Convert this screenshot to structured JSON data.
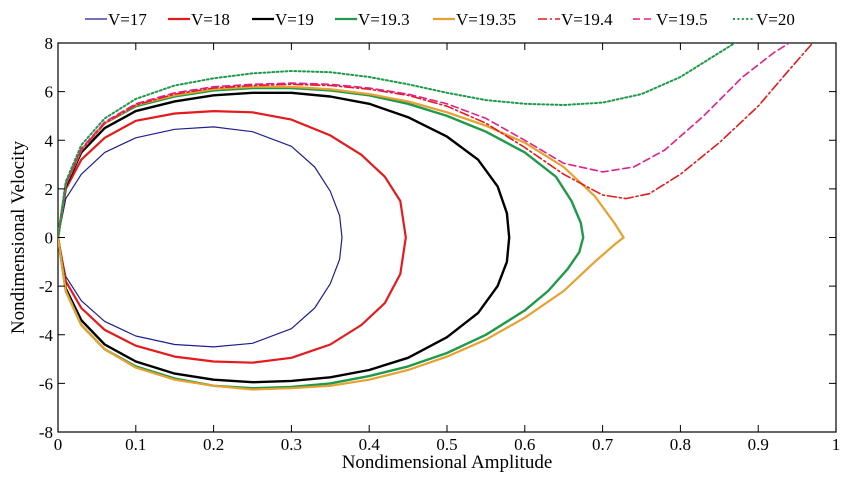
{
  "chart_data": {
    "type": "line",
    "title": "",
    "xlabel": "Nondimensional Amplitude",
    "ylabel": "Nondimensional Velocity",
    "xlim": [
      0,
      1
    ],
    "ylim": [
      -8,
      8
    ],
    "xticks": [
      0,
      0.1,
      0.2,
      0.3,
      0.4,
      0.5,
      0.6,
      0.7,
      0.8,
      0.9,
      1
    ],
    "xtick_labels": [
      "0",
      "0.1",
      "0.2",
      "0.3",
      "0.4",
      "0.5",
      "0.6",
      "0.7",
      "0.8",
      "0.9",
      "1"
    ],
    "yticks": [
      -8,
      -6,
      -4,
      -2,
      0,
      2,
      4,
      6,
      8
    ],
    "ytick_labels": [
      "-8",
      "-6",
      "-4",
      "-2",
      "0",
      "2",
      "4",
      "6",
      "8"
    ],
    "grid": false,
    "legend_position": "top",
    "series": [
      {
        "name": "V=17",
        "color": "#1f1f8f",
        "dash": "solid",
        "width": 1.2,
        "points": [
          [
            0,
            0
          ],
          [
            0.01,
            1.6
          ],
          [
            0.03,
            2.6
          ],
          [
            0.06,
            3.5
          ],
          [
            0.1,
            4.1
          ],
          [
            0.15,
            4.45
          ],
          [
            0.2,
            4.55
          ],
          [
            0.25,
            4.35
          ],
          [
            0.3,
            3.75
          ],
          [
            0.33,
            2.9
          ],
          [
            0.35,
            1.9
          ],
          [
            0.362,
            0.9
          ],
          [
            0.365,
            0
          ],
          [
            0.362,
            -0.9
          ],
          [
            0.35,
            -1.9
          ],
          [
            0.33,
            -2.9
          ],
          [
            0.3,
            -3.75
          ],
          [
            0.25,
            -4.35
          ],
          [
            0.2,
            -4.5
          ],
          [
            0.15,
            -4.4
          ],
          [
            0.1,
            -4.05
          ],
          [
            0.06,
            -3.45
          ],
          [
            0.03,
            -2.6
          ],
          [
            0.01,
            -1.6
          ],
          [
            0,
            0
          ]
        ]
      },
      {
        "name": "V=18",
        "color": "#e41a1c",
        "dash": "solid",
        "width": 2.2,
        "points": [
          [
            0,
            0
          ],
          [
            0.01,
            2.0
          ],
          [
            0.03,
            3.2
          ],
          [
            0.06,
            4.1
          ],
          [
            0.1,
            4.8
          ],
          [
            0.15,
            5.1
          ],
          [
            0.2,
            5.2
          ],
          [
            0.25,
            5.15
          ],
          [
            0.3,
            4.85
          ],
          [
            0.35,
            4.2
          ],
          [
            0.39,
            3.4
          ],
          [
            0.42,
            2.5
          ],
          [
            0.44,
            1.5
          ],
          [
            0.447,
            0
          ],
          [
            0.44,
            -1.5
          ],
          [
            0.42,
            -2.7
          ],
          [
            0.39,
            -3.6
          ],
          [
            0.35,
            -4.4
          ],
          [
            0.3,
            -4.95
          ],
          [
            0.25,
            -5.15
          ],
          [
            0.2,
            -5.1
          ],
          [
            0.15,
            -4.9
          ],
          [
            0.1,
            -4.45
          ],
          [
            0.06,
            -3.8
          ],
          [
            0.03,
            -2.9
          ],
          [
            0.01,
            -1.8
          ],
          [
            0,
            0
          ]
        ]
      },
      {
        "name": "V=19",
        "color": "#000000",
        "dash": "solid",
        "width": 2.4,
        "points": [
          [
            0,
            0
          ],
          [
            0.01,
            2.1
          ],
          [
            0.03,
            3.5
          ],
          [
            0.06,
            4.5
          ],
          [
            0.1,
            5.2
          ],
          [
            0.15,
            5.6
          ],
          [
            0.2,
            5.85
          ],
          [
            0.25,
            5.95
          ],
          [
            0.3,
            5.95
          ],
          [
            0.35,
            5.8
          ],
          [
            0.4,
            5.5
          ],
          [
            0.45,
            4.95
          ],
          [
            0.5,
            4.15
          ],
          [
            0.54,
            3.2
          ],
          [
            0.565,
            2.1
          ],
          [
            0.577,
            1.0
          ],
          [
            0.58,
            0
          ],
          [
            0.577,
            -1.0
          ],
          [
            0.565,
            -2.0
          ],
          [
            0.54,
            -3.1
          ],
          [
            0.5,
            -4.1
          ],
          [
            0.45,
            -4.95
          ],
          [
            0.4,
            -5.45
          ],
          [
            0.35,
            -5.75
          ],
          [
            0.3,
            -5.9
          ],
          [
            0.25,
            -5.95
          ],
          [
            0.2,
            -5.85
          ],
          [
            0.15,
            -5.6
          ],
          [
            0.1,
            -5.1
          ],
          [
            0.06,
            -4.4
          ],
          [
            0.03,
            -3.4
          ],
          [
            0.01,
            -2.1
          ],
          [
            0,
            0
          ]
        ]
      },
      {
        "name": "V=19.3",
        "color": "#1e9a4a",
        "dash": "solid",
        "width": 2.4,
        "points": [
          [
            0,
            0
          ],
          [
            0.01,
            2.2
          ],
          [
            0.03,
            3.6
          ],
          [
            0.06,
            4.7
          ],
          [
            0.1,
            5.4
          ],
          [
            0.15,
            5.8
          ],
          [
            0.2,
            6.05
          ],
          [
            0.25,
            6.15
          ],
          [
            0.3,
            6.15
          ],
          [
            0.35,
            6.05
          ],
          [
            0.4,
            5.85
          ],
          [
            0.45,
            5.5
          ],
          [
            0.5,
            5.0
          ],
          [
            0.55,
            4.35
          ],
          [
            0.6,
            3.5
          ],
          [
            0.64,
            2.5
          ],
          [
            0.66,
            1.5
          ],
          [
            0.672,
            0.6
          ],
          [
            0.675,
            0
          ],
          [
            0.67,
            -0.6
          ],
          [
            0.655,
            -1.3
          ],
          [
            0.63,
            -2.2
          ],
          [
            0.6,
            -3.0
          ],
          [
            0.55,
            -4.0
          ],
          [
            0.5,
            -4.75
          ],
          [
            0.45,
            -5.3
          ],
          [
            0.4,
            -5.7
          ],
          [
            0.35,
            -6.0
          ],
          [
            0.3,
            -6.15
          ],
          [
            0.25,
            -6.2
          ],
          [
            0.2,
            -6.1
          ],
          [
            0.15,
            -5.8
          ],
          [
            0.1,
            -5.3
          ],
          [
            0.06,
            -4.6
          ],
          [
            0.03,
            -3.6
          ],
          [
            0.01,
            -2.2
          ],
          [
            0,
            0
          ]
        ]
      },
      {
        "name": "V=19.35",
        "color": "#e8a030",
        "dash": "solid",
        "width": 2.2,
        "points": [
          [
            0,
            0
          ],
          [
            0.01,
            2.2
          ],
          [
            0.03,
            3.6
          ],
          [
            0.06,
            4.7
          ],
          [
            0.1,
            5.45
          ],
          [
            0.15,
            5.85
          ],
          [
            0.2,
            6.1
          ],
          [
            0.25,
            6.2
          ],
          [
            0.3,
            6.2
          ],
          [
            0.35,
            6.1
          ],
          [
            0.4,
            5.9
          ],
          [
            0.45,
            5.6
          ],
          [
            0.5,
            5.15
          ],
          [
            0.55,
            4.6
          ],
          [
            0.6,
            3.9
          ],
          [
            0.65,
            2.9
          ],
          [
            0.69,
            1.7
          ],
          [
            0.715,
            0.6
          ],
          [
            0.727,
            0
          ],
          [
            0.715,
            -0.3
          ],
          [
            0.69,
            -1.0
          ],
          [
            0.65,
            -2.2
          ],
          [
            0.6,
            -3.3
          ],
          [
            0.55,
            -4.2
          ],
          [
            0.5,
            -4.9
          ],
          [
            0.45,
            -5.45
          ],
          [
            0.4,
            -5.85
          ],
          [
            0.35,
            -6.1
          ],
          [
            0.3,
            -6.2
          ],
          [
            0.25,
            -6.25
          ],
          [
            0.2,
            -6.1
          ],
          [
            0.15,
            -5.85
          ],
          [
            0.1,
            -5.35
          ],
          [
            0.06,
            -4.6
          ],
          [
            0.03,
            -3.6
          ],
          [
            0.01,
            -2.2
          ],
          [
            0,
            0
          ]
        ]
      },
      {
        "name": "V=19.4",
        "color": "#e41a1c",
        "dash": "dashdot",
        "width": 1.6,
        "points": [
          [
            0,
            0
          ],
          [
            0.01,
            2.2
          ],
          [
            0.03,
            3.6
          ],
          [
            0.06,
            4.7
          ],
          [
            0.1,
            5.45
          ],
          [
            0.15,
            5.9
          ],
          [
            0.2,
            6.15
          ],
          [
            0.25,
            6.25
          ],
          [
            0.3,
            6.3
          ],
          [
            0.35,
            6.25
          ],
          [
            0.4,
            6.1
          ],
          [
            0.45,
            5.85
          ],
          [
            0.5,
            5.4
          ],
          [
            0.55,
            4.7
          ],
          [
            0.6,
            3.7
          ],
          [
            0.65,
            2.6
          ],
          [
            0.7,
            1.75
          ],
          [
            0.73,
            1.6
          ],
          [
            0.76,
            1.8
          ],
          [
            0.8,
            2.6
          ],
          [
            0.85,
            3.9
          ],
          [
            0.9,
            5.4
          ],
          [
            0.94,
            6.9
          ],
          [
            0.97,
            8.0
          ]
        ]
      },
      {
        "name": "V=19.5",
        "color": "#e0208c",
        "dash": "dash",
        "width": 1.6,
        "points": [
          [
            0,
            0
          ],
          [
            0.01,
            2.2
          ],
          [
            0.03,
            3.65
          ],
          [
            0.06,
            4.75
          ],
          [
            0.1,
            5.5
          ],
          [
            0.15,
            5.95
          ],
          [
            0.2,
            6.2
          ],
          [
            0.25,
            6.3
          ],
          [
            0.3,
            6.35
          ],
          [
            0.35,
            6.3
          ],
          [
            0.4,
            6.15
          ],
          [
            0.45,
            5.9
          ],
          [
            0.5,
            5.5
          ],
          [
            0.55,
            4.9
          ],
          [
            0.6,
            4.0
          ],
          [
            0.65,
            3.05
          ],
          [
            0.7,
            2.7
          ],
          [
            0.74,
            2.9
          ],
          [
            0.78,
            3.6
          ],
          [
            0.83,
            5.0
          ],
          [
            0.88,
            6.6
          ],
          [
            0.92,
            7.6
          ],
          [
            0.94,
            8.0
          ]
        ]
      },
      {
        "name": "V=20",
        "color": "#1e9a4a",
        "dash": "dot",
        "width": 2.0,
        "points": [
          [
            0,
            0
          ],
          [
            0.01,
            2.3
          ],
          [
            0.03,
            3.8
          ],
          [
            0.06,
            4.9
          ],
          [
            0.1,
            5.7
          ],
          [
            0.15,
            6.25
          ],
          [
            0.2,
            6.55
          ],
          [
            0.25,
            6.75
          ],
          [
            0.3,
            6.85
          ],
          [
            0.35,
            6.8
          ],
          [
            0.4,
            6.6
          ],
          [
            0.45,
            6.3
          ],
          [
            0.5,
            5.95
          ],
          [
            0.55,
            5.65
          ],
          [
            0.6,
            5.5
          ],
          [
            0.65,
            5.45
          ],
          [
            0.7,
            5.55
          ],
          [
            0.75,
            5.9
          ],
          [
            0.8,
            6.6
          ],
          [
            0.85,
            7.6
          ],
          [
            0.87,
            8.0
          ]
        ]
      }
    ]
  }
}
